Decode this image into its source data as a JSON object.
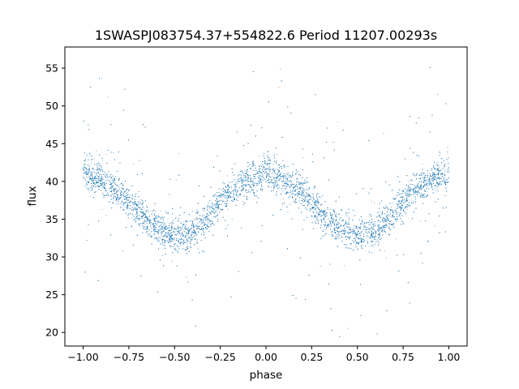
{
  "chart_data": {
    "type": "scatter",
    "title": "1SWASPJ083754.37+554822.6 Period 11207.00293s",
    "xlabel": "phase",
    "ylabel": "flux",
    "xlim": [
      -1.1,
      1.1
    ],
    "ylim": [
      18.2,
      57.8
    ],
    "xticks": [
      -1.0,
      -0.75,
      -0.5,
      -0.25,
      0.0,
      0.25,
      0.5,
      0.75,
      1.0
    ],
    "xtick_labels": [
      "−1.00",
      "−0.75",
      "−0.50",
      "−0.25",
      "0.00",
      "0.25",
      "0.50",
      "0.75",
      "1.00"
    ],
    "yticks": [
      20,
      25,
      30,
      35,
      40,
      45,
      50,
      55
    ],
    "ytick_labels": [
      "20",
      "25",
      "30",
      "35",
      "40",
      "45",
      "50",
      "55"
    ],
    "grid": false,
    "point_color": "#1f77b4",
    "series": [
      {
        "x": [
          -1.0,
          -0.9,
          -0.8,
          -0.7,
          -0.6,
          -0.5,
          -0.4,
          -0.3,
          -0.2,
          -0.1,
          0.0,
          0.1,
          0.2,
          0.3,
          0.4,
          0.5,
          0.6,
          0.7,
          0.8,
          0.9,
          1.0
        ],
        "y": [
          41.0,
          40.2,
          38.6,
          36.0,
          34.0,
          32.8,
          33.2,
          35.8,
          38.6,
          40.2,
          41.0,
          40.2,
          38.6,
          36.0,
          34.0,
          32.8,
          33.2,
          35.8,
          38.6,
          40.2,
          41.0
        ]
      }
    ]
  }
}
